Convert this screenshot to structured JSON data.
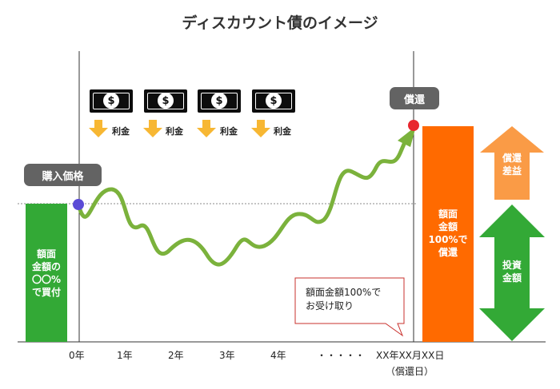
{
  "title": "ディスカウント債のイメージ",
  "purchase_label": "購入価格",
  "redemption_label": "償還",
  "purchase_block": {
    "line1": "額面",
    "line2": "金額の",
    "line3": "〇〇%",
    "line4": "で買付"
  },
  "redemption_block": {
    "line1": "額面",
    "line2": "金額",
    "line3": "100%で",
    "line4": "償還"
  },
  "gain_arrow": {
    "line1": "償還",
    "line2": "差益"
  },
  "investment_arrow": {
    "line1": "投資",
    "line2": "金額"
  },
  "callout": {
    "line1": "額面金額100%で",
    "line2": "お受け取り"
  },
  "interest_label": "利金",
  "bill_icon": "dollar-bill-icon",
  "x_axis": {
    "ticks": [
      "0年",
      "1年",
      "2年",
      "3年",
      "4年",
      "・・・・・",
      "XX年XX月XX日"
    ],
    "redemption_date_note": "（償還日）"
  },
  "colors": {
    "green": "#33a936",
    "orange": "#ff6a00",
    "light_orange": "#fa9b46",
    "curve": "#7bb23c",
    "purple_dot": "#5b4bd6",
    "red_dot": "#e8262e",
    "pill": "#636363",
    "callout_border": "#c9302c",
    "arrow_down": "#f7b733"
  }
}
